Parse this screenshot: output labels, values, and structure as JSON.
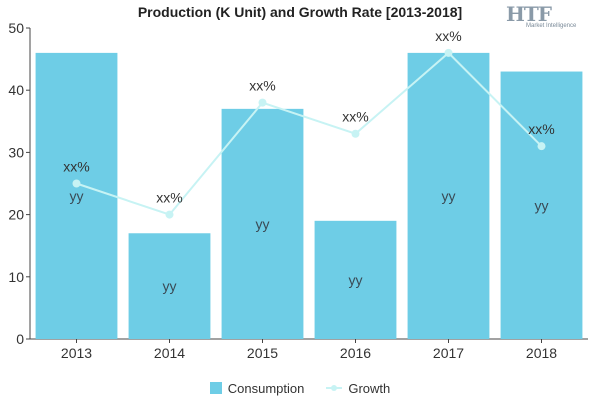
{
  "chart_data": {
    "type": "bar",
    "title": "Production (K Unit) and Growth Rate [2013-2018]",
    "categories": [
      "2013",
      "2014",
      "2015",
      "2016",
      "2017",
      "2018"
    ],
    "ylim": [
      0,
      50
    ],
    "yticks": [
      "0",
      "10",
      "20",
      "30",
      "40",
      "50"
    ],
    "grid": false,
    "legend_position": "bottom-center",
    "series": [
      {
        "name": "Consumption",
        "type": "bar",
        "color": "#6ecde6",
        "values": [
          46,
          17,
          37,
          19,
          46,
          43
        ],
        "labels": [
          "yy",
          "yy",
          "yy",
          "yy",
          "yy",
          "yy"
        ]
      },
      {
        "name": "Growth",
        "type": "line",
        "color": "#c7f3f4",
        "values": [
          25,
          20,
          38,
          33,
          46,
          31
        ],
        "labels": [
          "xx%",
          "xx%",
          "xx%",
          "xx%",
          "xx%",
          "xx%"
        ]
      }
    ]
  },
  "logo": {
    "mark": "HTF",
    "subtitle": "Market Intelligence"
  }
}
